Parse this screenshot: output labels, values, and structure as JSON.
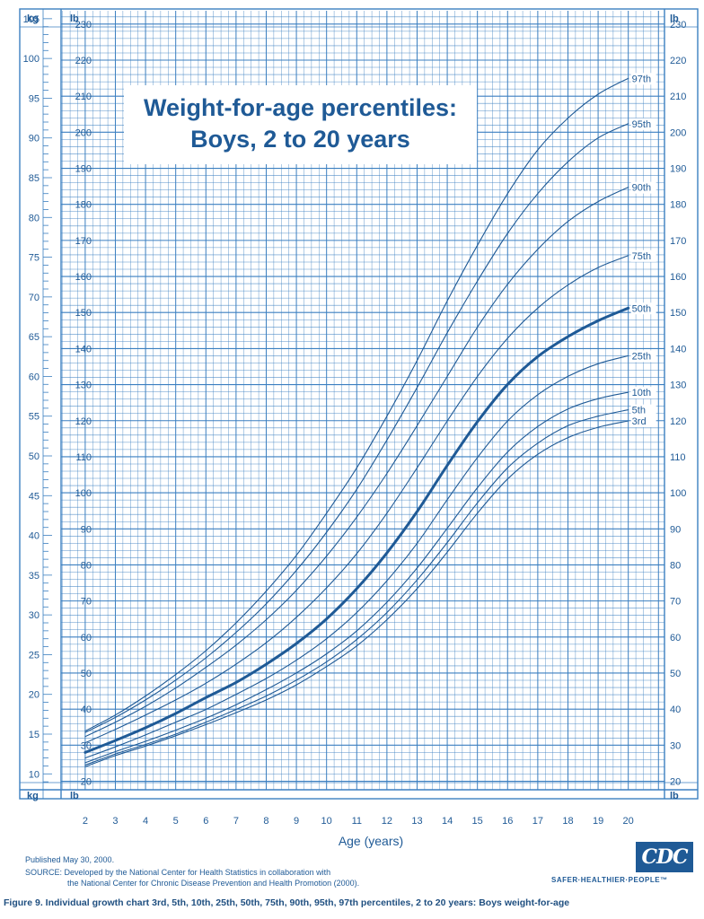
{
  "title": {
    "line1": "Weight-for-age percentiles:",
    "line2": "Boys, 2 to 20 years"
  },
  "axis_units": {
    "kg": "kg",
    "lb": "lb"
  },
  "footer": {
    "published": "Published May 30, 2000.",
    "source_line1": "SOURCE: Developed by the National Center for Health Statistics in collaboration with",
    "source_line2": "the National Center for Chronic Disease Prevention and Health Promotion (2000)."
  },
  "caption": "Figure 9. Individual growth chart 3rd, 5th, 10th, 25th, 50th, 75th, 90th, 95th, 97th percentiles, 2 to 20 years: Boys weight-for-age",
  "logo": {
    "text": "CDC",
    "tagline": "SAFER·HEALTHIER·PEOPLE™"
  },
  "colors": {
    "grid": "#3b7fc0",
    "curve": "#1f5a96",
    "text": "#1f5a96",
    "background": "#ffffff"
  },
  "chart_data": {
    "type": "line",
    "xlabel": "Age (years)",
    "ylabel": "",
    "x_ticks": [
      2,
      3,
      4,
      5,
      6,
      7,
      8,
      9,
      10,
      11,
      12,
      13,
      14,
      15,
      16,
      17,
      18,
      19,
      20
    ],
    "xlim": [
      1.2,
      21.2
    ],
    "ylim_kg": [
      8,
      106
    ],
    "ylim_lb": [
      17.6,
      233.7
    ],
    "kg_ticks": [
      10,
      15,
      20,
      25,
      30,
      35,
      40,
      45,
      50,
      55,
      60,
      65,
      70,
      75,
      80,
      85,
      90,
      95,
      100,
      105
    ],
    "lb_ticks": [
      20,
      30,
      40,
      50,
      60,
      70,
      80,
      90,
      100,
      110,
      120,
      130,
      140,
      150,
      160,
      170,
      180,
      190,
      200,
      210,
      220,
      230
    ],
    "grid": true,
    "x": [
      2,
      3,
      4,
      5,
      6,
      7,
      8,
      9,
      10,
      11,
      12,
      13,
      14,
      15,
      16,
      17,
      18,
      19,
      20
    ],
    "series": [
      {
        "name": "97th",
        "values": [
          15.4,
          17.4,
          19.8,
          22.5,
          25.5,
          29.0,
          33.0,
          37.5,
          42.8,
          48.5,
          55.0,
          62.0,
          69.5,
          76.5,
          83.0,
          88.5,
          92.5,
          95.5,
          97.5
        ]
      },
      {
        "name": "95th",
        "values": [
          15.2,
          17.1,
          19.3,
          21.8,
          24.6,
          27.8,
          31.4,
          35.6,
          40.4,
          45.8,
          52.0,
          58.6,
          65.5,
          72.0,
          78.0,
          83.0,
          87.0,
          90.0,
          91.8
        ]
      },
      {
        "name": "90th",
        "values": [
          14.7,
          16.5,
          18.5,
          20.8,
          23.4,
          26.2,
          29.4,
          33.1,
          37.4,
          42.3,
          47.8,
          53.8,
          60.0,
          66.2,
          71.6,
          76.0,
          79.5,
          82.0,
          83.8
        ]
      },
      {
        "name": "75th",
        "values": [
          13.9,
          15.6,
          17.4,
          19.3,
          21.4,
          23.8,
          26.5,
          29.7,
          33.4,
          37.7,
          42.8,
          48.5,
          54.4,
          60.0,
          64.8,
          68.6,
          71.5,
          73.7,
          75.2
        ]
      },
      {
        "name": "50th",
        "values": [
          12.7,
          14.2,
          15.8,
          17.6,
          19.6,
          21.5,
          23.8,
          26.4,
          29.5,
          33.3,
          37.8,
          43.0,
          48.8,
          54.3,
          59.0,
          62.5,
          65.0,
          67.0,
          68.6
        ]
      },
      {
        "name": "25th",
        "values": [
          12.0,
          13.4,
          14.9,
          16.5,
          18.1,
          20.0,
          22.0,
          24.3,
          27.0,
          30.3,
          34.3,
          39.0,
          44.5,
          49.8,
          54.4,
          57.7,
          60.0,
          61.6,
          62.6
        ]
      },
      {
        "name": "10th",
        "values": [
          11.4,
          12.8,
          14.1,
          15.5,
          17.0,
          18.7,
          20.6,
          22.7,
          25.1,
          28.0,
          31.6,
          35.9,
          40.9,
          46.0,
          50.5,
          53.7,
          55.9,
          57.2,
          58.0
        ]
      },
      {
        "name": "5th",
        "values": [
          11.1,
          12.5,
          13.7,
          15.0,
          16.5,
          18.1,
          19.8,
          21.8,
          24.1,
          26.9,
          30.3,
          34.4,
          39.1,
          44.1,
          48.5,
          51.6,
          53.8,
          55.0,
          55.8
        ]
      },
      {
        "name": "3rd",
        "values": [
          10.9,
          12.3,
          13.5,
          14.8,
          16.2,
          17.7,
          19.3,
          21.2,
          23.5,
          26.1,
          29.4,
          33.3,
          37.9,
          42.8,
          47.1,
          50.2,
          52.3,
          53.6,
          54.4
        ]
      }
    ]
  }
}
